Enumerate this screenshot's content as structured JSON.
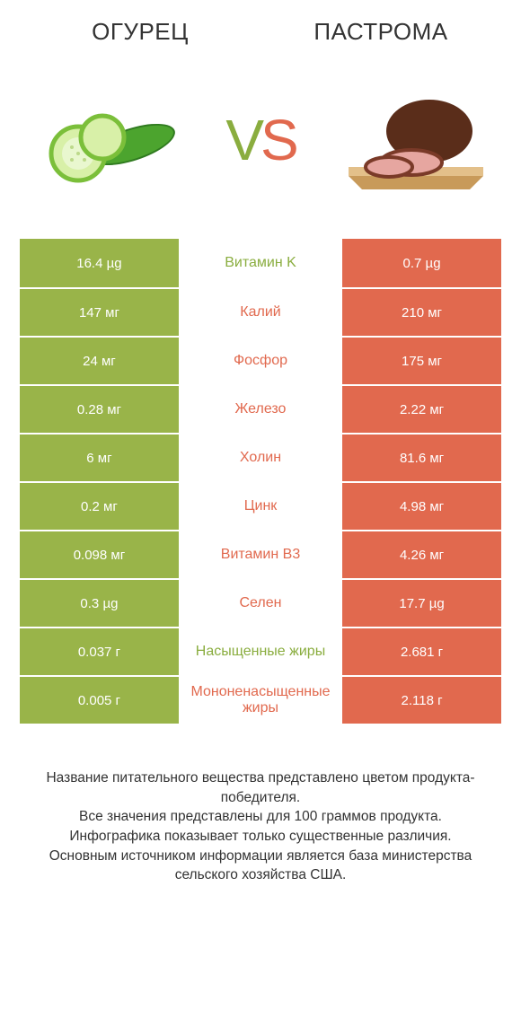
{
  "colors": {
    "left_bar": "#99b449",
    "right_bar": "#e1694e",
    "left_text": "#8aad3f",
    "right_text": "#e1694e",
    "title": "#333333"
  },
  "left_title": "ОГУРЕЦ",
  "right_title": "ПАСТРОМА",
  "vs_v": "V",
  "vs_s": "S",
  "rows": [
    {
      "left": "16.4 µg",
      "mid": "Витамин K",
      "right": "0.7 µg",
      "winner": "left"
    },
    {
      "left": "147 мг",
      "mid": "Калий",
      "right": "210 мг",
      "winner": "right"
    },
    {
      "left": "24 мг",
      "mid": "Фосфор",
      "right": "175 мг",
      "winner": "right"
    },
    {
      "left": "0.28 мг",
      "mid": "Железо",
      "right": "2.22 мг",
      "winner": "right"
    },
    {
      "left": "6 мг",
      "mid": "Холин",
      "right": "81.6 мг",
      "winner": "right"
    },
    {
      "left": "0.2 мг",
      "mid": "Цинк",
      "right": "4.98 мг",
      "winner": "right"
    },
    {
      "left": "0.098 мг",
      "mid": "Витамин B3",
      "right": "4.26 мг",
      "winner": "right"
    },
    {
      "left": "0.3 µg",
      "mid": "Селен",
      "right": "17.7 µg",
      "winner": "right"
    },
    {
      "left": "0.037 г",
      "mid": "Насыщенные жиры",
      "right": "2.681 г",
      "winner": "left"
    },
    {
      "left": "0.005 г",
      "mid": "Мононенасыщенные жиры",
      "right": "2.118 г",
      "winner": "right"
    }
  ],
  "footnote": "Название питательного вещества представлено цветом продукта-победителя.\nВсе значения представлены для 100 граммов продукта.\nИнфографика показывает только существенные различия.\nОсновным источником информации является база министерства сельского хозяйства США."
}
